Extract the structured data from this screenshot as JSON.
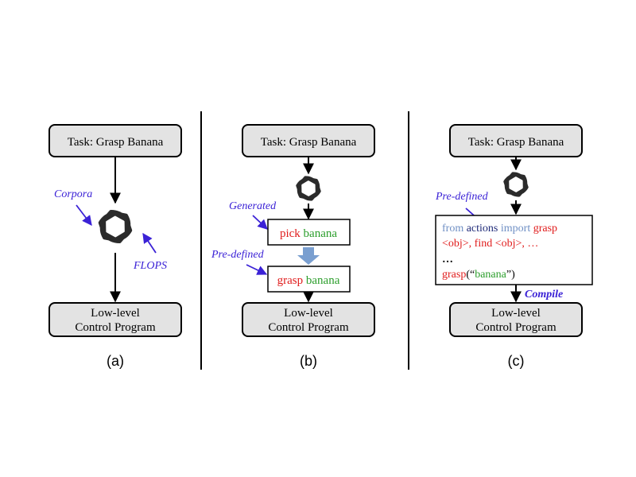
{
  "panel_a": {
    "task_label": "Task: Grasp Banana",
    "output_line1": "Low-level",
    "output_line2": "Control Program",
    "note_corpora": "Corpora",
    "note_flops": "FLOPS",
    "caption": "(a)",
    "llm_icon": "openai-logo-icon"
  },
  "panel_b": {
    "task_label": "Task: Grasp Banana",
    "note_generated": "Generated",
    "note_predefined": "Pre-defined",
    "generated_verb": "pick",
    "generated_obj": "banana",
    "predefined_verb": "grasp",
    "predefined_obj": "banana",
    "output_line1": "Low-level",
    "output_line2": "Control Program",
    "caption": "(b)",
    "llm_icon": "openai-logo-icon"
  },
  "panel_c": {
    "task_label": "Task: Grasp Banana",
    "note_predefined": "Pre-defined",
    "code_from": "from",
    "code_actions": "actions",
    "code_import": "import",
    "code_grasp": "grasp",
    "code_line2": "<obj>, find <obj>, …",
    "code_line3": "…",
    "code_call_fn": "grasp",
    "code_call_open": "(“",
    "code_call_arg": "banana",
    "code_call_close": "”)",
    "note_compile": "Compile",
    "output_line1": "Low-level",
    "output_line2": "Control Program",
    "caption": "(c)",
    "llm_icon": "openai-logo-icon"
  },
  "colors": {
    "annotation": "#3b22d6",
    "code_red": "#e01b1b",
    "code_green": "#2a9d2a",
    "code_blue": "#6f8fc4",
    "code_navy": "#1f2a78",
    "arrow_fill": "#7a9fd0"
  }
}
